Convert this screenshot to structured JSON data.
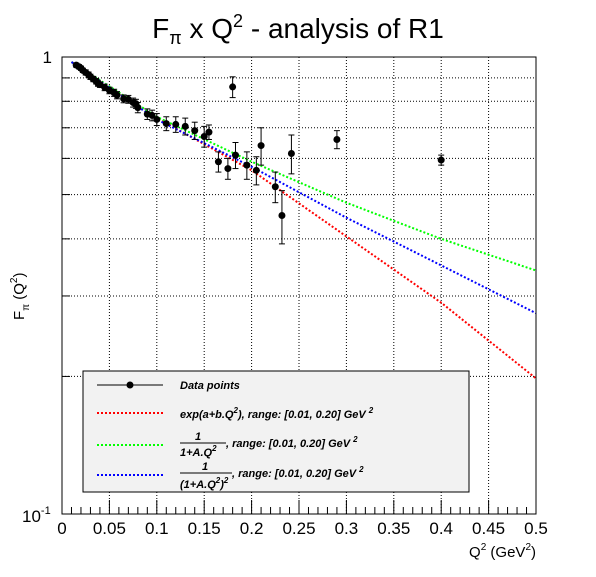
{
  "chart_data": {
    "type": "scatter",
    "title_main": "F",
    "title_sub": "π",
    "title_mid": " x Q",
    "title_sup": "2",
    "title_tail": " - analysis of R1",
    "xlabel_main": "Q",
    "xlabel_sup": "2",
    "xlabel_unit": " (GeV",
    "xlabel_unit_sup": "2",
    "xlabel_close": ")",
    "ylabel_main": "F",
    "ylabel_sub": "π",
    "ylabel_open": " (Q",
    "ylabel_sup": "2",
    "ylabel_close": ")",
    "xlim": [
      0,
      0.5
    ],
    "ylim": [
      0.1,
      1
    ],
    "yscale": "log",
    "grid": true,
    "x_ticks": [
      "0",
      "0.05",
      "0.1",
      "0.15",
      "0.2",
      "0.25",
      "0.3",
      "0.35",
      "0.4",
      "0.45",
      "0.5"
    ],
    "y_tick_top": "1",
    "y_tick_bottom_base": "10",
    "y_tick_bottom_exp": "-1",
    "series": [
      {
        "name": "Data points",
        "kind": "points",
        "color": "#000000",
        "points": [
          {
            "x": 0.015,
            "y": 0.96,
            "e": 0.01
          },
          {
            "x": 0.018,
            "y": 0.952,
            "e": 0.01
          },
          {
            "x": 0.02,
            "y": 0.945,
            "e": 0.01
          },
          {
            "x": 0.022,
            "y": 0.935,
            "e": 0.01
          },
          {
            "x": 0.025,
            "y": 0.925,
            "e": 0.012
          },
          {
            "x": 0.028,
            "y": 0.915,
            "e": 0.012
          },
          {
            "x": 0.03,
            "y": 0.905,
            "e": 0.012
          },
          {
            "x": 0.033,
            "y": 0.895,
            "e": 0.012
          },
          {
            "x": 0.036,
            "y": 0.885,
            "e": 0.012
          },
          {
            "x": 0.038,
            "y": 0.875,
            "e": 0.012
          },
          {
            "x": 0.04,
            "y": 0.87,
            "e": 0.012
          },
          {
            "x": 0.045,
            "y": 0.858,
            "e": 0.014
          },
          {
            "x": 0.05,
            "y": 0.845,
            "e": 0.014
          },
          {
            "x": 0.055,
            "y": 0.835,
            "e": 0.015
          },
          {
            "x": 0.058,
            "y": 0.825,
            "e": 0.015
          },
          {
            "x": 0.065,
            "y": 0.81,
            "e": 0.016
          },
          {
            "x": 0.07,
            "y": 0.808,
            "e": 0.016
          },
          {
            "x": 0.075,
            "y": 0.795,
            "e": 0.018
          },
          {
            "x": 0.078,
            "y": 0.79,
            "e": 0.018
          },
          {
            "x": 0.08,
            "y": 0.775,
            "e": 0.02
          },
          {
            "x": 0.09,
            "y": 0.75,
            "e": 0.02
          },
          {
            "x": 0.095,
            "y": 0.745,
            "e": 0.02
          },
          {
            "x": 0.1,
            "y": 0.73,
            "e": 0.022
          },
          {
            "x": 0.11,
            "y": 0.715,
            "e": 0.025
          },
          {
            "x": 0.12,
            "y": 0.712,
            "e": 0.028
          },
          {
            "x": 0.13,
            "y": 0.705,
            "e": 0.03
          },
          {
            "x": 0.14,
            "y": 0.69,
            "e": 0.03
          },
          {
            "x": 0.15,
            "y": 0.67,
            "e": 0.035
          },
          {
            "x": 0.155,
            "y": 0.685,
            "e": 0.025
          },
          {
            "x": 0.165,
            "y": 0.59,
            "e": 0.03
          },
          {
            "x": 0.175,
            "y": 0.57,
            "e": 0.03
          },
          {
            "x": 0.18,
            "y": 0.86,
            "e": 0.045
          },
          {
            "x": 0.183,
            "y": 0.61,
            "e": 0.04
          },
          {
            "x": 0.195,
            "y": 0.58,
            "e": 0.04
          },
          {
            "x": 0.205,
            "y": 0.565,
            "e": 0.04
          },
          {
            "x": 0.21,
            "y": 0.64,
            "e": 0.06
          },
          {
            "x": 0.225,
            "y": 0.52,
            "e": 0.04
          },
          {
            "x": 0.232,
            "y": 0.45,
            "e": 0.06
          },
          {
            "x": 0.242,
            "y": 0.615,
            "e": 0.06
          },
          {
            "x": 0.29,
            "y": 0.66,
            "e": 0.03
          },
          {
            "x": 0.4,
            "y": 0.595,
            "e": 0.015
          }
        ]
      },
      {
        "name": "exp(a+b.Q², range: [0.01, 0.20] GeV ²",
        "kind": "line",
        "color": "#ff0000",
        "points": [
          {
            "x": 0.01,
            "y": 0.975
          },
          {
            "x": 0.1,
            "y": 0.735
          },
          {
            "x": 0.2,
            "y": 0.565
          },
          {
            "x": 0.3,
            "y": 0.405
          },
          {
            "x": 0.4,
            "y": 0.29
          },
          {
            "x": 0.5,
            "y": 0.198
          }
        ]
      },
      {
        "name": "1/(1+A.Q²), range: [0.01, 0.20] GeV ²",
        "kind": "line",
        "color": "#00ff00",
        "points": [
          {
            "x": 0.01,
            "y": 0.975
          },
          {
            "x": 0.1,
            "y": 0.74
          },
          {
            "x": 0.2,
            "y": 0.59
          },
          {
            "x": 0.3,
            "y": 0.48
          },
          {
            "x": 0.4,
            "y": 0.4
          },
          {
            "x": 0.5,
            "y": 0.341
          }
        ]
      },
      {
        "name": "1/(1+A.Q²)², range: [0.01, 0.20] GeV ²",
        "kind": "line",
        "color": "#0000ff",
        "points": [
          {
            "x": 0.01,
            "y": 0.975
          },
          {
            "x": 0.1,
            "y": 0.73
          },
          {
            "x": 0.2,
            "y": 0.575
          },
          {
            "x": 0.3,
            "y": 0.445
          },
          {
            "x": 0.4,
            "y": 0.35
          },
          {
            "x": 0.5,
            "y": 0.275
          }
        ]
      }
    ],
    "legend": {
      "placement": "bottom-center",
      "entries": {
        "data": "Data points",
        "exp_text": "exp(a+b.Q",
        "exp_sup": "2",
        "exp_tail": "), range: [0.01, 0.20] GeV ",
        "exp_tail_sup": "2",
        "frac_num": "1",
        "frac_den_green": "1+A.Q",
        "frac_den_green_sup": "2",
        "frac_den_blue": "(1+A.Q",
        "frac_den_blue_sup": "2",
        "frac_den_blue_close": ")",
        "frac_den_blue_pow": "2",
        "range_text": ", range: [0.01, 0.20] GeV ",
        "range_sup": "2"
      }
    }
  }
}
